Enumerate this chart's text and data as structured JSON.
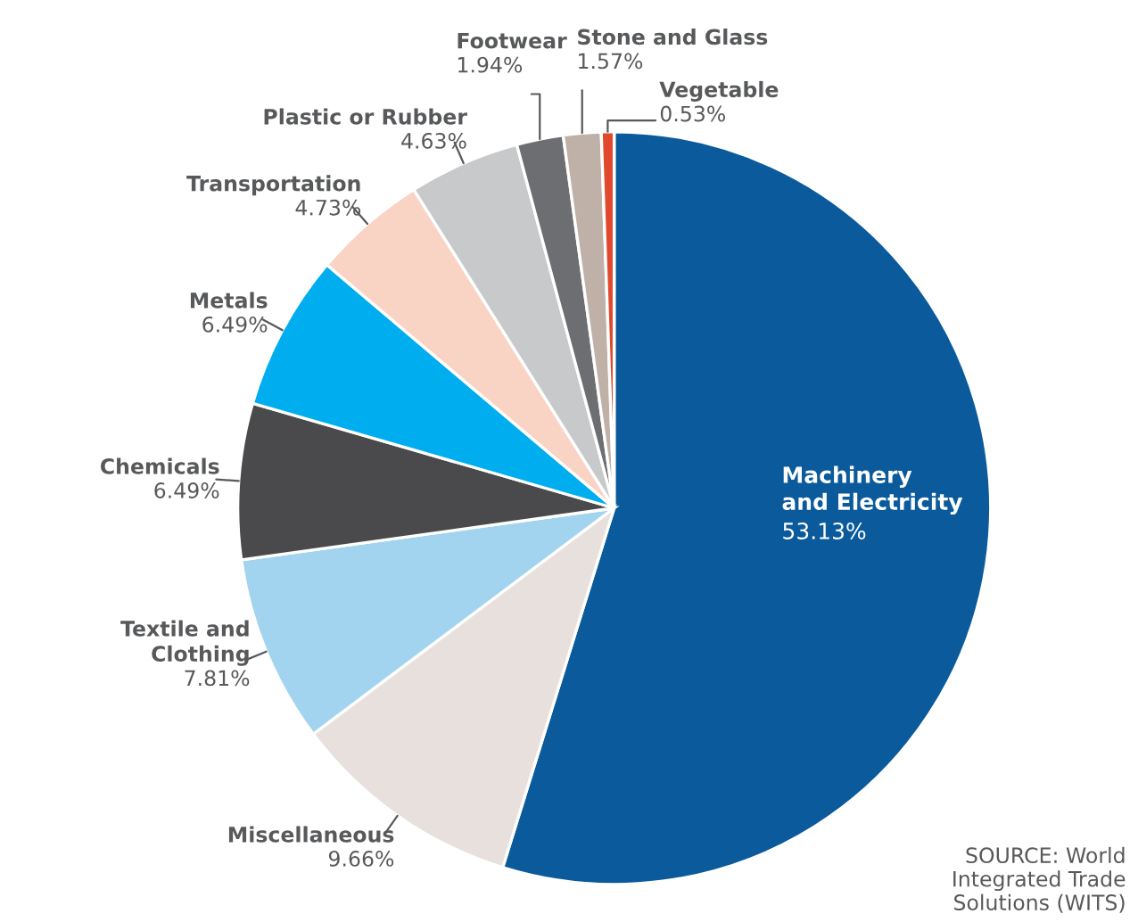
{
  "chart_data": {
    "type": "pie",
    "categories": [
      "Machinery\nand Electricity",
      "Miscellaneous",
      "Textile and\nClothing",
      "Chemicals",
      "Metals",
      "Transportation",
      "Plastic or Rubber",
      "Footwear",
      "Stone and Glass",
      "Vegetable"
    ],
    "values": [
      53.13,
      9.66,
      7.81,
      6.49,
      6.49,
      4.73,
      4.63,
      1.94,
      1.57,
      0.53
    ],
    "value_labels": [
      "53.13%",
      "9.66%",
      "7.81%",
      "6.49%",
      "6.49%",
      "4.73%",
      "4.63%",
      "1.94%",
      "1.57%",
      "0.53%"
    ],
    "colors": [
      "#0a5a9c",
      "#e8e0dc",
      "#a3d4ef",
      "#4a4a4c",
      "#00aeef",
      "#f9d3c4",
      "#c8c9cb",
      "#6d6e71",
      "#bfb1a8",
      "#e0492e"
    ],
    "annotations": [
      "SOURCE: World\nIntegrated Trade\nSolutions (WITS)"
    ]
  }
}
